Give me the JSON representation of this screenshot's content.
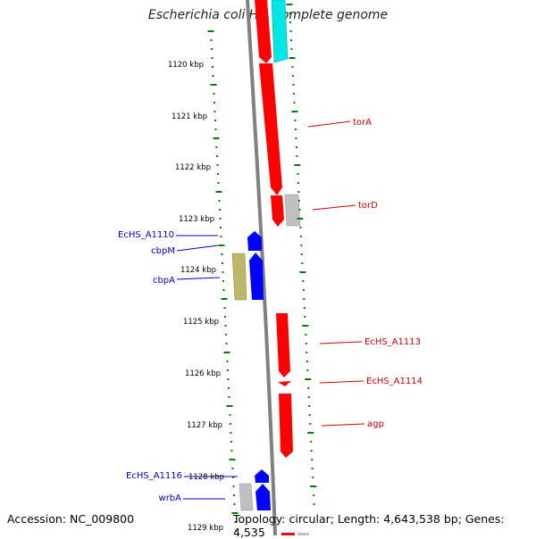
{
  "title": "Escherichia coli HS, complete genome",
  "accession_label": "Accession: NC_009800",
  "topology_label": "Topology: circular; Length: 4,643,538 bp; Genes: 4,535",
  "colors": {
    "forward_gene": "#ff0000",
    "reverse_gene": "#0000ff",
    "other_gene": "#c0c0c0",
    "cyan_gene": "#00e5e5",
    "olive_gene": "#bdb76b",
    "ruler_dots": "#008000",
    "backbone": "#808080",
    "right_labels": "#d00000",
    "left_labels": "#0000cc"
  },
  "ruler": {
    "ticks": [
      "1120 kbp",
      "1121 kbp",
      "1122 kbp",
      "1123 kbp",
      "1124 kbp",
      "1125 kbp",
      "1126 kbp",
      "1127 kbp",
      "1128 kbp",
      "1129 kbp"
    ]
  },
  "genes_right": [
    {
      "name": "torA"
    },
    {
      "name": "torD"
    },
    {
      "name": "EcHS_A1113"
    },
    {
      "name": "EcHS_A1114"
    },
    {
      "name": "agp"
    }
  ],
  "genes_left": [
    {
      "name": "EcHS_A1110"
    },
    {
      "name": "cbpM"
    },
    {
      "name": "cbpA"
    },
    {
      "name": "EcHS_A1116"
    },
    {
      "name": "wrbA"
    }
  ]
}
